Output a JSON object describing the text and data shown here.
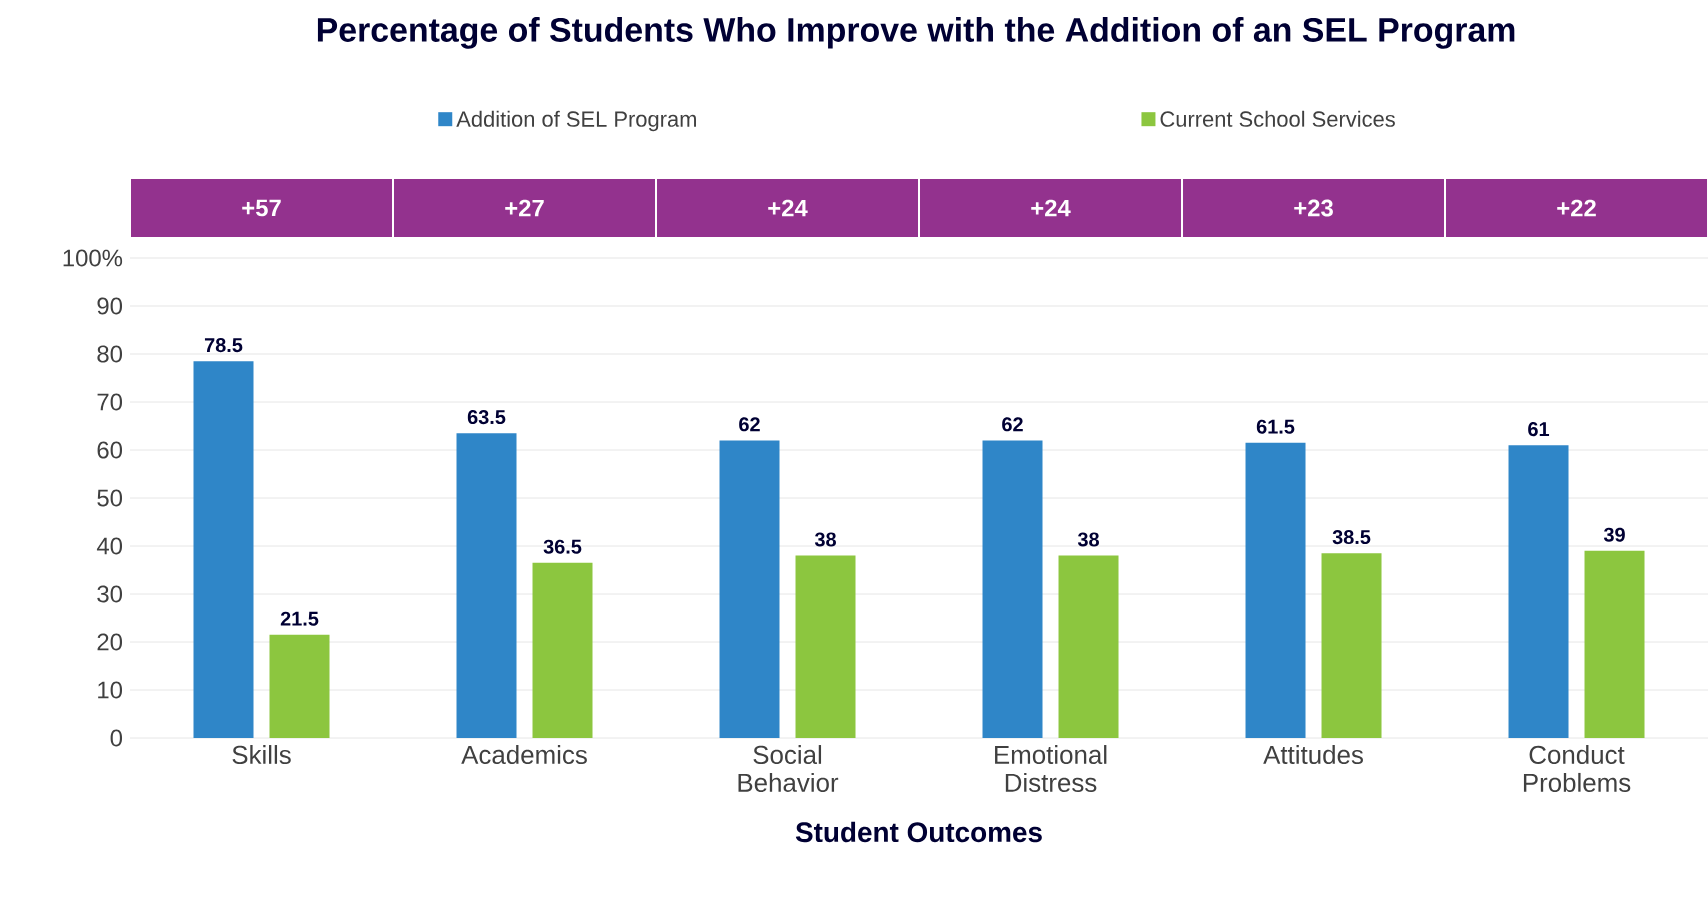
{
  "chart_data": {
    "type": "bar",
    "title": "Percentage of Students Who Improve with the Addition of an SEL Program",
    "xlabel": "Student Outcomes",
    "categories": [
      "Skills",
      "Academics",
      "Social Behavior",
      "Emotional Distress",
      "Attitudes",
      "Conduct Problems"
    ],
    "series": [
      {
        "name": "Addition of SEL Program",
        "color": "#2f86c8",
        "values": [
          78.5,
          63.5,
          62,
          62,
          61.5,
          61
        ]
      },
      {
        "name": "Current School Services",
        "color": "#8cc63f",
        "values": [
          21.5,
          36.5,
          38,
          38,
          38.5,
          39
        ]
      }
    ],
    "annotations": [
      "+57",
      "+27",
      "+24",
      "+24",
      "+23",
      "+22"
    ],
    "ylim": [
      0,
      100
    ],
    "yticks": [
      0,
      10,
      20,
      30,
      40,
      50,
      60,
      70,
      80,
      90,
      {
        "value": 100,
        "label": "100%"
      }
    ],
    "grid": "y",
    "legend": "top",
    "data_labels": true
  }
}
